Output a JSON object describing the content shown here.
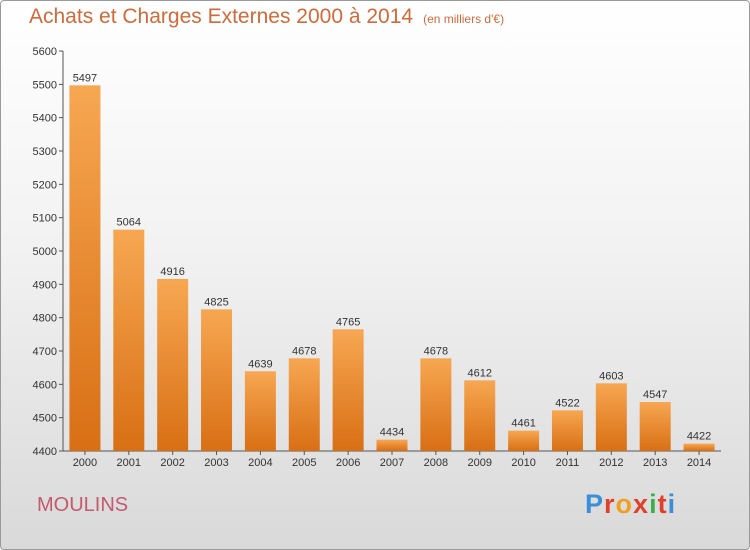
{
  "header": {
    "title": "Achats et Charges Externes 2000 à 2014",
    "unit": "(en milliers d'€)"
  },
  "footer": {
    "commune": "MOULINS",
    "logo_text": "Proxiti",
    "logo_colors": [
      "#3a8fd9",
      "#e0402a",
      "#f0a020",
      "#e0402a",
      "#3ab04a",
      "#e0402a",
      "#3a8fd9"
    ]
  },
  "colors": {
    "bar_light": "#f7a752",
    "bar_dark": "#d86f14",
    "title": "#d06a38",
    "commune": "#c45a6e"
  },
  "chart_data": {
    "type": "bar",
    "categories": [
      "2000",
      "2001",
      "2002",
      "2003",
      "2004",
      "2005",
      "2006",
      "2007",
      "2008",
      "2009",
      "2010",
      "2011",
      "2012",
      "2013",
      "2014"
    ],
    "values": [
      5497,
      5064,
      4916,
      4825,
      4639,
      4678,
      4765,
      4434,
      4678,
      4612,
      4461,
      4522,
      4603,
      4547,
      4422
    ],
    "ylim": [
      4400,
      5600
    ],
    "yticks": [
      4400,
      4500,
      4600,
      4700,
      4800,
      4900,
      5000,
      5100,
      5200,
      5300,
      5400,
      5500,
      5600
    ],
    "grid": false
  }
}
